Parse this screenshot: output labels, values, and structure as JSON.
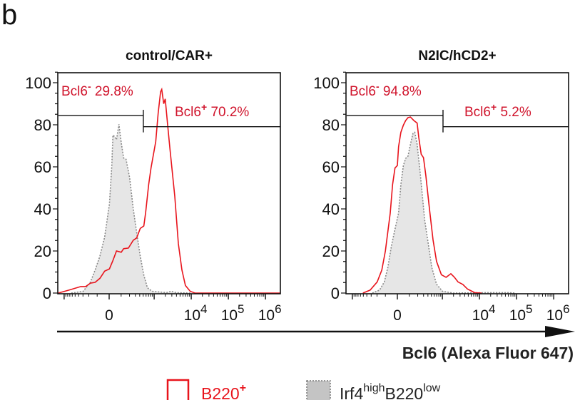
{
  "panel_letter": "b",
  "chart_data": [
    {
      "type": "line",
      "title": "control/CAR+",
      "xscale": "biexponential",
      "xlim": [
        -1430,
        2500000
      ],
      "ylim": [
        0,
        105
      ],
      "yticks": [
        0,
        20,
        40,
        60,
        80,
        100
      ],
      "xticks": [
        {
          "value": 0,
          "base": "0",
          "exp": ""
        },
        {
          "value": 10000,
          "base": "10",
          "exp": "4"
        },
        {
          "value": 100000,
          "base": "10",
          "exp": "5"
        },
        {
          "value": 1000000,
          "base": "10",
          "exp": "6"
        }
      ],
      "gates": [
        {
          "label": "Bcl6",
          "sign": "-",
          "percent": "29.8%",
          "from": -1430,
          "to": 505,
          "y": 84.4
        },
        {
          "label": "Bcl6",
          "sign": "+",
          "percent": "70.2%",
          "from": 505,
          "to": 2500000,
          "y": 79.1
        }
      ],
      "series": [
        {
          "name": "B220+",
          "style": "red-line",
          "x": [
            -1430,
            -740,
            -347,
            -251,
            -177,
            -121,
            -75,
            -35,
            2,
            29,
            58,
            101,
            126,
            184,
            260,
            328,
            415,
            522,
            583,
            707,
            823,
            1103,
            1280,
            1490,
            1600,
            1810,
            1990,
            2310,
            2670,
            3600,
            4490,
            5600,
            6970,
            9400,
            12600,
            2500000
          ],
          "y": [
            0,
            1.4,
            3.1,
            3.1,
            4.7,
            5.1,
            7.0,
            10.4,
            11.5,
            15.5,
            20,
            19.4,
            21.1,
            21.4,
            25.1,
            26.2,
            30.7,
            31.9,
            38.1,
            51.6,
            59.5,
            72,
            85.5,
            95.7,
            96.8,
            90,
            92.3,
            79.9,
            68.6,
            46,
            23.5,
            11,
            3.6,
            0.8,
            0,
            0
          ]
        },
        {
          "name": "Irf4highB220low",
          "style": "grey-dotted-filled",
          "x": [
            -640,
            -295,
            -177,
            -121,
            -75,
            -35,
            2,
            20,
            29,
            49,
            58,
            79,
            101,
            126,
            154,
            203,
            260,
            328,
            415,
            522,
            652,
            886,
            2140,
            2890,
            3900,
            9400
          ],
          "y": [
            0,
            0.8,
            5.3,
            10.9,
            17.5,
            26.6,
            42.4,
            60.5,
            75.1,
            74,
            72.9,
            80.2,
            71.6,
            64.2,
            63.6,
            54.6,
            40,
            28.7,
            17.5,
            8.5,
            2.5,
            0.8,
            0.2,
            0.8,
            0.2,
            0
          ]
        }
      ]
    },
    {
      "type": "line",
      "title": "N2IC/hCD2+",
      "xscale": "biexponential",
      "xlim": [
        -1430,
        2500000
      ],
      "ylim": [
        0,
        105
      ],
      "yticks": [
        0,
        20,
        40,
        60,
        80,
        100
      ],
      "xticks": [
        {
          "value": 0,
          "base": "0",
          "exp": ""
        },
        {
          "value": 10000,
          "base": "10",
          "exp": "4"
        },
        {
          "value": 100000,
          "base": "10",
          "exp": "5"
        },
        {
          "value": 1000000,
          "base": "10",
          "exp": "6"
        }
      ],
      "gates": [
        {
          "label": "Bcl6",
          "sign": "-",
          "percent": "94.8%",
          "from": -1430,
          "to": 1040,
          "y": 84.4
        },
        {
          "label": "Bcl6",
          "sign": "+",
          "percent": "5.2%",
          "from": 1040,
          "to": 2500000,
          "y": 79.1
        }
      ],
      "series": [
        {
          "name": "B220+",
          "style": "red-line",
          "x": [
            -515,
            -322,
            -198,
            -138,
            -100,
            -77,
            -56,
            -37,
            -18,
            0,
            9,
            27,
            47,
            66,
            87,
            111,
            150,
            191,
            216,
            255,
            299,
            349,
            442,
            554,
            694,
            940,
            1260,
            1700,
            2120,
            2640,
            3570,
            4760,
            7400,
            11500
          ],
          "y": [
            0,
            1.4,
            5.3,
            10.9,
            20,
            29,
            38,
            51.6,
            59.5,
            60.6,
            69.6,
            76.4,
            79.8,
            82,
            83.4,
            83.7,
            82,
            80.8,
            74,
            66,
            64.4,
            55.9,
            40,
            25.3,
            15.1,
            8.7,
            7.5,
            9.2,
            7.5,
            5.3,
            4.1,
            1.9,
            0.2,
            0
          ]
        },
        {
          "name": "Irf4highB220low",
          "style": "grey-dotted-filled",
          "x": [
            -277,
            -166,
            -111,
            -77,
            -47,
            -27,
            9,
            27,
            47,
            66,
            87,
            111,
            138,
            160,
            191,
            238,
            279,
            324,
            410,
            515,
            694,
            1010,
            1960,
            18000,
            58500,
            91000
          ],
          "y": [
            0,
            1.4,
            5.3,
            12.1,
            22.3,
            27.9,
            38.1,
            51.6,
            60.6,
            64,
            65.1,
            70.7,
            75.8,
            76.4,
            70.7,
            57.1,
            45.8,
            34.6,
            23.3,
            12.1,
            4.2,
            0.8,
            0,
            0.2,
            0.2,
            0
          ]
        }
      ]
    }
  ],
  "x_axis_label": "Bcl6 (Alexa Fluor 647)",
  "legend": [
    {
      "base": "B220",
      "sup1": "+",
      "mid": "",
      "sup2": "",
      "color": "#e8141c",
      "style": "red-outline"
    },
    {
      "base": "Irf4",
      "sup1": "high",
      "mid": "B220",
      "sup2": "low",
      "color": "#c0c0c0",
      "style": "grey-dotted-filled"
    }
  ],
  "colors": {
    "red": "#e8141c",
    "label_red": "#d0142c",
    "grey_fill": "#e6e6e6",
    "grey_line": "#888888",
    "black": "#1a1a1a"
  }
}
